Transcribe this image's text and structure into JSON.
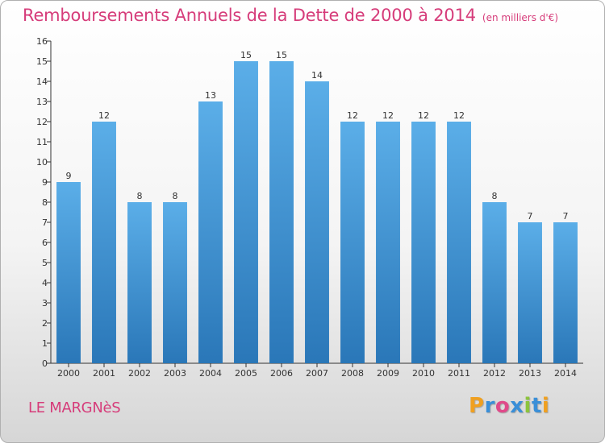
{
  "chart_data": {
    "type": "bar",
    "title": "Remboursements Annuels de la Dette de 2000 à 2014",
    "unit_note": "(en milliers d'€)",
    "xlabel": "",
    "ylabel": "",
    "categories": [
      "2000",
      "2001",
      "2002",
      "2003",
      "2004",
      "2005",
      "2006",
      "2007",
      "2008",
      "2009",
      "2010",
      "2011",
      "2012",
      "2013",
      "2014"
    ],
    "values": [
      9,
      12,
      8,
      8,
      13,
      15,
      15,
      14,
      12,
      12,
      12,
      12,
      8,
      7,
      7
    ],
    "ylim": [
      0,
      16
    ],
    "yticks": [
      0,
      1,
      2,
      3,
      4,
      5,
      6,
      7,
      8,
      9,
      10,
      11,
      12,
      13,
      14,
      15,
      16
    ],
    "grid": false,
    "bar_color_top": "#5baee8",
    "bar_color_bottom": "#2a77b8"
  },
  "commune": "LE MARGNèS",
  "logo": {
    "text": "Proxiti",
    "letters": [
      "P",
      "r",
      "o",
      "x",
      "i",
      "t",
      "i"
    ],
    "colors": [
      "#f0a020",
      "#3a8fd8",
      "#e04a8a",
      "#3a8fd8",
      "#8cc43c",
      "#3a8fd8",
      "#f0a020"
    ]
  },
  "colors": {
    "title": "#d63c7a",
    "axis": "#333333"
  }
}
